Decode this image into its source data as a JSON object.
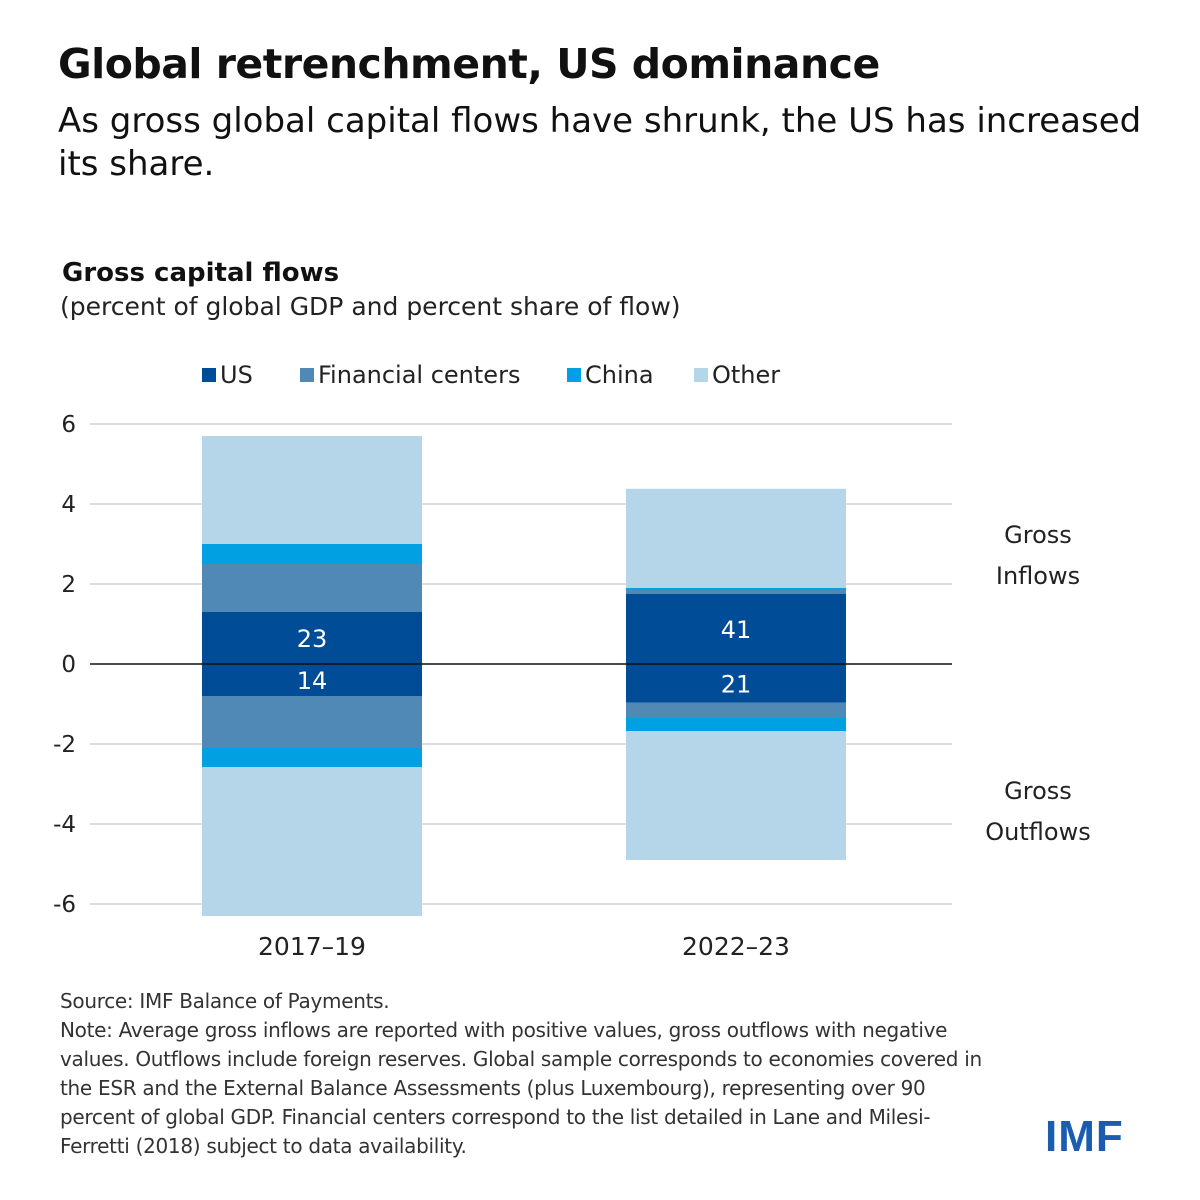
{
  "header": {
    "title": "Global retrenchment, US dominance",
    "subtitle": "As gross global capital flows have shrunk, the US has increased its share."
  },
  "chart_data": {
    "type": "bar",
    "stacked": true,
    "title": "Gross capital flows",
    "subtitle": "(percent of global GDP and percent share of flow)",
    "categories": [
      "2017–19",
      "2022–23"
    ],
    "ylim": [
      -6,
      6
    ],
    "yticks": [
      6,
      4,
      2,
      0,
      -2,
      -4,
      -6
    ],
    "grid": true,
    "legend_position": "top",
    "series": [
      {
        "name": "US",
        "color": "#004c97",
        "inflows": [
          1.3,
          1.75
        ],
        "outflows": [
          -0.8,
          -0.97
        ]
      },
      {
        "name": "Financial centers",
        "color": "#5089b5",
        "inflows": [
          1.2,
          0.1
        ],
        "outflows": [
          -1.3,
          -0.38
        ]
      },
      {
        "name": "China",
        "color": "#00a0e3",
        "inflows": [
          0.5,
          0.05
        ],
        "outflows": [
          -0.48,
          -0.33
        ]
      },
      {
        "name": "Other",
        "color": "#b5d6e8",
        "inflows": [
          2.7,
          2.48
        ],
        "outflows": [
          -3.72,
          -3.22
        ]
      }
    ],
    "us_share_labels": {
      "inflows": [
        "23",
        "41"
      ],
      "outflows": [
        "14",
        "21"
      ]
    },
    "annotations": {
      "inflows": [
        "Gross",
        "Inflows"
      ],
      "outflows": [
        "Gross",
        "Outflows"
      ]
    }
  },
  "footer": {
    "source": "Source: IMF Balance of Payments.",
    "note": "Note: Average gross inflows are reported with positive values, gross outflows with negative values. Outflows include foreign reserves. Global sample corresponds to economies covered in the ESR and the External Balance Assessments (plus Luxembourg), representing over 90 percent of global GDP. Financial centers correspond to the list detailed in Lane and Milesi-Ferretti (2018) subject to data availability.",
    "logo": "IMF"
  }
}
